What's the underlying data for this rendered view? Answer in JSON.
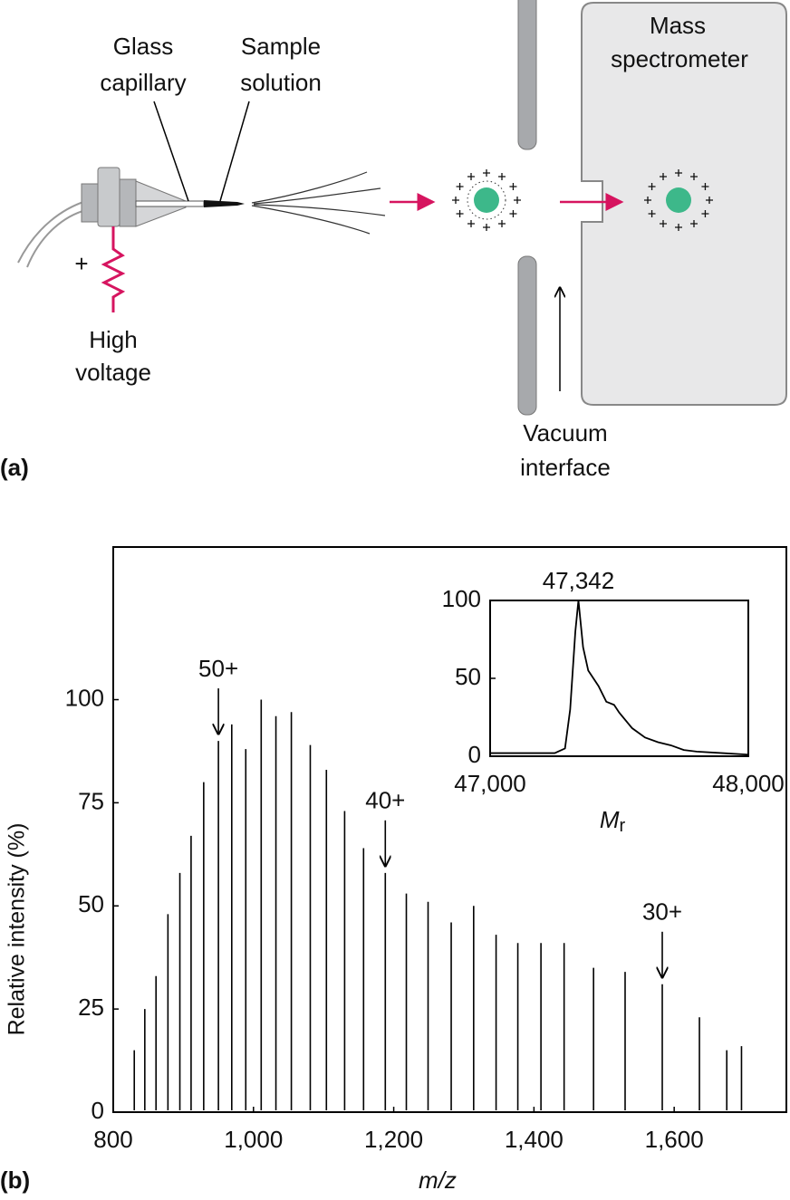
{
  "diagram": {
    "panel_label": "(a)",
    "glass_capillary": [
      "Glass",
      "capillary"
    ],
    "sample_solution": [
      "Sample",
      "solution"
    ],
    "mass_spectrometer": [
      "Mass",
      "spectrometer"
    ],
    "polarity": "+",
    "high_voltage": [
      "High",
      "voltage"
    ],
    "vacuum_interface": [
      "Vacuum",
      "interface"
    ]
  },
  "panel_label_b": "(b)",
  "chart_data": [
    {
      "type": "spectrum",
      "ylabel": "Relative intensity (%)",
      "xlabel": "m/z",
      "color": "#000000",
      "x": [
        830,
        845,
        861,
        878,
        895,
        911,
        929,
        950,
        969,
        989,
        1011,
        1032,
        1054,
        1081,
        1104,
        1130,
        1157,
        1188,
        1218,
        1249,
        1282,
        1314,
        1346,
        1377,
        1410,
        1443,
        1485,
        1530,
        1583,
        1636,
        1675,
        1696
      ],
      "values": [
        15,
        25,
        33,
        48,
        58,
        67,
        80,
        90,
        94,
        88,
        100,
        96,
        97,
        89,
        83,
        73,
        64,
        58,
        53,
        51,
        46,
        50,
        43,
        41,
        41,
        41,
        35,
        34,
        31,
        23,
        15,
        16
      ],
      "xlim": [
        800,
        1760
      ],
      "ylim": [
        0,
        137
      ],
      "xticks": [
        800,
        {
          "value": 1000,
          "label": "1,000"
        },
        {
          "value": 1200,
          "label": "1,200"
        },
        {
          "value": 1400,
          "label": "1,400"
        },
        {
          "value": 1600,
          "label": "1,600"
        }
      ],
      "yticks": [
        0,
        25,
        50,
        75,
        100
      ],
      "annotations": [
        {
          "text": "50+",
          "x": 950
        },
        {
          "text": "40+",
          "x": 1188
        },
        {
          "text": "30+",
          "x": 1583
        }
      ]
    },
    {
      "type": "line",
      "xlabel": "Mr",
      "color": "#000000",
      "x": [
        47000,
        47100,
        47200,
        47250,
        47290,
        47310,
        47330,
        47342,
        47360,
        47380,
        47420,
        47450,
        47480,
        47500,
        47550,
        47600,
        47650,
        47700,
        47750,
        47800,
        47900,
        48000
      ],
      "values": [
        2,
        2,
        2,
        2,
        5,
        30,
        80,
        100,
        70,
        55,
        45,
        35,
        33,
        28,
        18,
        12,
        9,
        7,
        4,
        3,
        2,
        1
      ],
      "xlim": [
        47000,
        48000
      ],
      "ylim": [
        0,
        100
      ],
      "xticks": [
        {
          "value": 47000,
          "label": "47,000"
        },
        {
          "value": 48000,
          "label": "48,000"
        }
      ],
      "yticks": [
        0,
        50,
        100
      ],
      "annotations": [
        {
          "text": "47,342",
          "x": 47342
        }
      ]
    }
  ]
}
